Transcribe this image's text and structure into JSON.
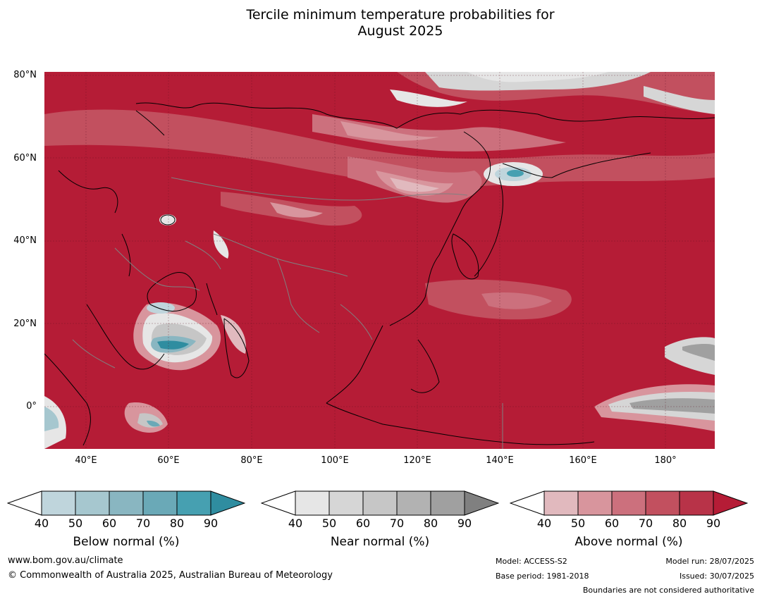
{
  "title": {
    "line1": "Tercile minimum temperature probabilities for",
    "line2": "August 2025"
  },
  "map": {
    "lat_labels": [
      "80°N",
      "60°N",
      "40°N",
      "20°N",
      "0°"
    ],
    "lon_labels": [
      "40°E",
      "60°E",
      "80°E",
      "100°E",
      "120°E",
      "140°E",
      "160°E",
      "180°"
    ],
    "colors": {
      "above_max": "#b51c36",
      "sea_land_border": "#000000",
      "country_border": "#808080"
    }
  },
  "colorbars": {
    "below": {
      "title": "Below normal (%)",
      "ticks": [
        "40",
        "50",
        "60",
        "70",
        "80",
        "90"
      ],
      "colors": [
        "#bfd5dc",
        "#a6c7cf",
        "#89b6c1",
        "#6aa9b7",
        "#46a0b1",
        "#2f8da0"
      ]
    },
    "near": {
      "title": "Near normal (%)",
      "ticks": [
        "40",
        "50",
        "60",
        "70",
        "80",
        "90"
      ],
      "colors": [
        "#e6e6e6",
        "#d6d6d6",
        "#c6c6c6",
        "#b2b2b2",
        "#a0a0a0",
        "#808080"
      ]
    },
    "above": {
      "title": "Above normal (%)",
      "ticks": [
        "40",
        "50",
        "60",
        "70",
        "80",
        "90"
      ],
      "colors": [
        "#e1b9be",
        "#d8959d",
        "#cc707d",
        "#c2505f",
        "#b83348",
        "#b51c36"
      ]
    }
  },
  "footer": {
    "website": "www.bom.gov.au/climate",
    "copyright": "© Commonwealth of Australia 2025, Australian Bureau of Meteorology",
    "model": "Model: ACCESS-S2",
    "base_period": "Base period: 1981-2018",
    "model_run": "Model run: 28/07/2025",
    "issued": "Issued: 30/07/2025",
    "disclaimer": "Boundaries are not considered authoritative"
  }
}
